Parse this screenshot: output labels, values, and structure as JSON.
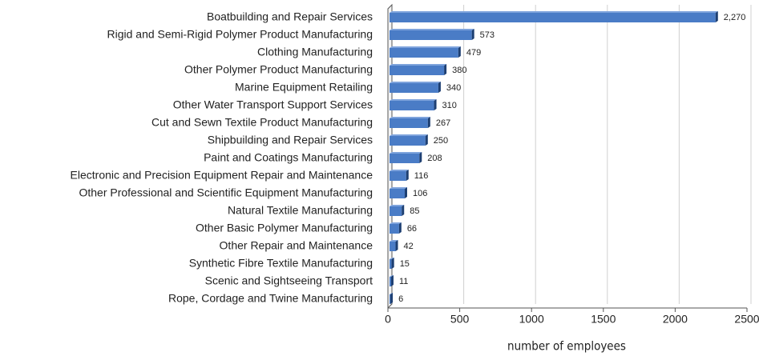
{
  "chart_data": {
    "type": "bar",
    "orientation": "horizontal",
    "categories": [
      "Boatbuilding and Repair Services",
      "Rigid and Semi-Rigid Polymer Product Manufacturing",
      "Clothing Manufacturing",
      "Other Polymer Product Manufacturing",
      "Marine Equipment Retailing",
      "Other Water Transport Support Services",
      "Cut and Sewn Textile Product Manufacturing",
      "Shipbuilding and Repair Services",
      "Paint and Coatings Manufacturing",
      "Electronic and Precision Equipment Repair and Maintenance",
      "Other Professional and Scientific Equipment Manufacturing",
      "Natural Textile Manufacturing",
      "Other Basic Polymer Manufacturing",
      "Other Repair and Maintenance",
      "Synthetic Fibre Textile Manufacturing",
      "Scenic and Sightseeing Transport",
      "Rope, Cordage and Twine Manufacturing"
    ],
    "values": [
      2270,
      573,
      479,
      380,
      340,
      310,
      267,
      250,
      208,
      116,
      106,
      85,
      66,
      42,
      15,
      11,
      6
    ],
    "value_labels": [
      "2,270",
      "573",
      "479",
      "380",
      "340",
      "310",
      "267",
      "250",
      "208",
      "116",
      "106",
      "85",
      "66",
      "42",
      "15",
      "11",
      "6"
    ],
    "color": "#4a7cc6",
    "xlabel": "number of employees",
    "xlim": [
      0,
      2500
    ],
    "xticks": [
      0,
      500,
      1000,
      1500,
      2000,
      2500
    ],
    "grid": true
  }
}
